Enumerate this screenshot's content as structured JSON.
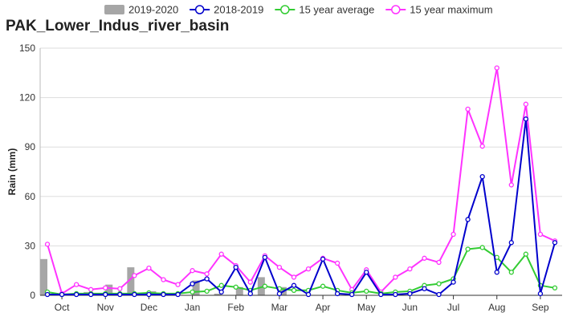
{
  "chart_data": {
    "type": "bar+line",
    "title": "PAK_Lower_Indus_river_basin",
    "ylabel": "Rain (mm)",
    "xlabel": "",
    "ylim": [
      0,
      150
    ],
    "yticks": [
      0,
      30,
      60,
      90,
      120,
      150
    ],
    "grid": true,
    "legend_position": "top",
    "month_labels": [
      "Oct",
      "Nov",
      "Dec",
      "Jan",
      "Feb",
      "Mar",
      "Apr",
      "May",
      "Jun",
      "Jul",
      "Aug",
      "Sep"
    ],
    "periods_per_month": 3,
    "series": [
      {
        "name": "2019-2020",
        "kind": "bar",
        "color": "#a6a6a6",
        "values": [
          22,
          1,
          2,
          6.5,
          17,
          2.5,
          0.5,
          9,
          1,
          5,
          11,
          5
        ]
      },
      {
        "name": "2018-2019",
        "kind": "line",
        "color": "#0000cc",
        "values": [
          0.5,
          0.5,
          0.5,
          0.5,
          0.5,
          0.5,
          0.5,
          0.5,
          0.5,
          0.5,
          7,
          10,
          2,
          17,
          1,
          23,
          1,
          6,
          0.5,
          22,
          1,
          0.5,
          14,
          0.5,
          0.5,
          1,
          4,
          0.5,
          8,
          46,
          72,
          14,
          32,
          107,
          1,
          32
        ]
      },
      {
        "name": "15 year average",
        "kind": "line",
        "color": "#33cc33",
        "values": [
          2,
          0.5,
          1,
          1,
          1,
          1,
          1,
          1.5,
          1,
          1,
          2,
          2.5,
          6,
          5,
          3,
          5.5,
          4,
          3,
          3,
          5.5,
          3,
          1.5,
          2.5,
          1,
          2,
          2.5,
          6,
          7,
          10,
          28,
          29,
          23,
          14,
          25,
          6,
          4.5
        ]
      },
      {
        "name": "15 year maximum",
        "kind": "line",
        "color": "#ff33ff",
        "values": [
          31,
          1,
          6.5,
          3.5,
          4.5,
          4,
          12,
          16.5,
          9.5,
          6.5,
          15,
          13,
          25,
          18,
          8,
          24,
          17,
          11,
          16,
          22.5,
          19.5,
          3.5,
          15.5,
          2,
          11,
          16,
          22.5,
          20,
          37,
          113,
          90.5,
          138,
          67,
          116,
          37,
          33
        ]
      }
    ]
  }
}
